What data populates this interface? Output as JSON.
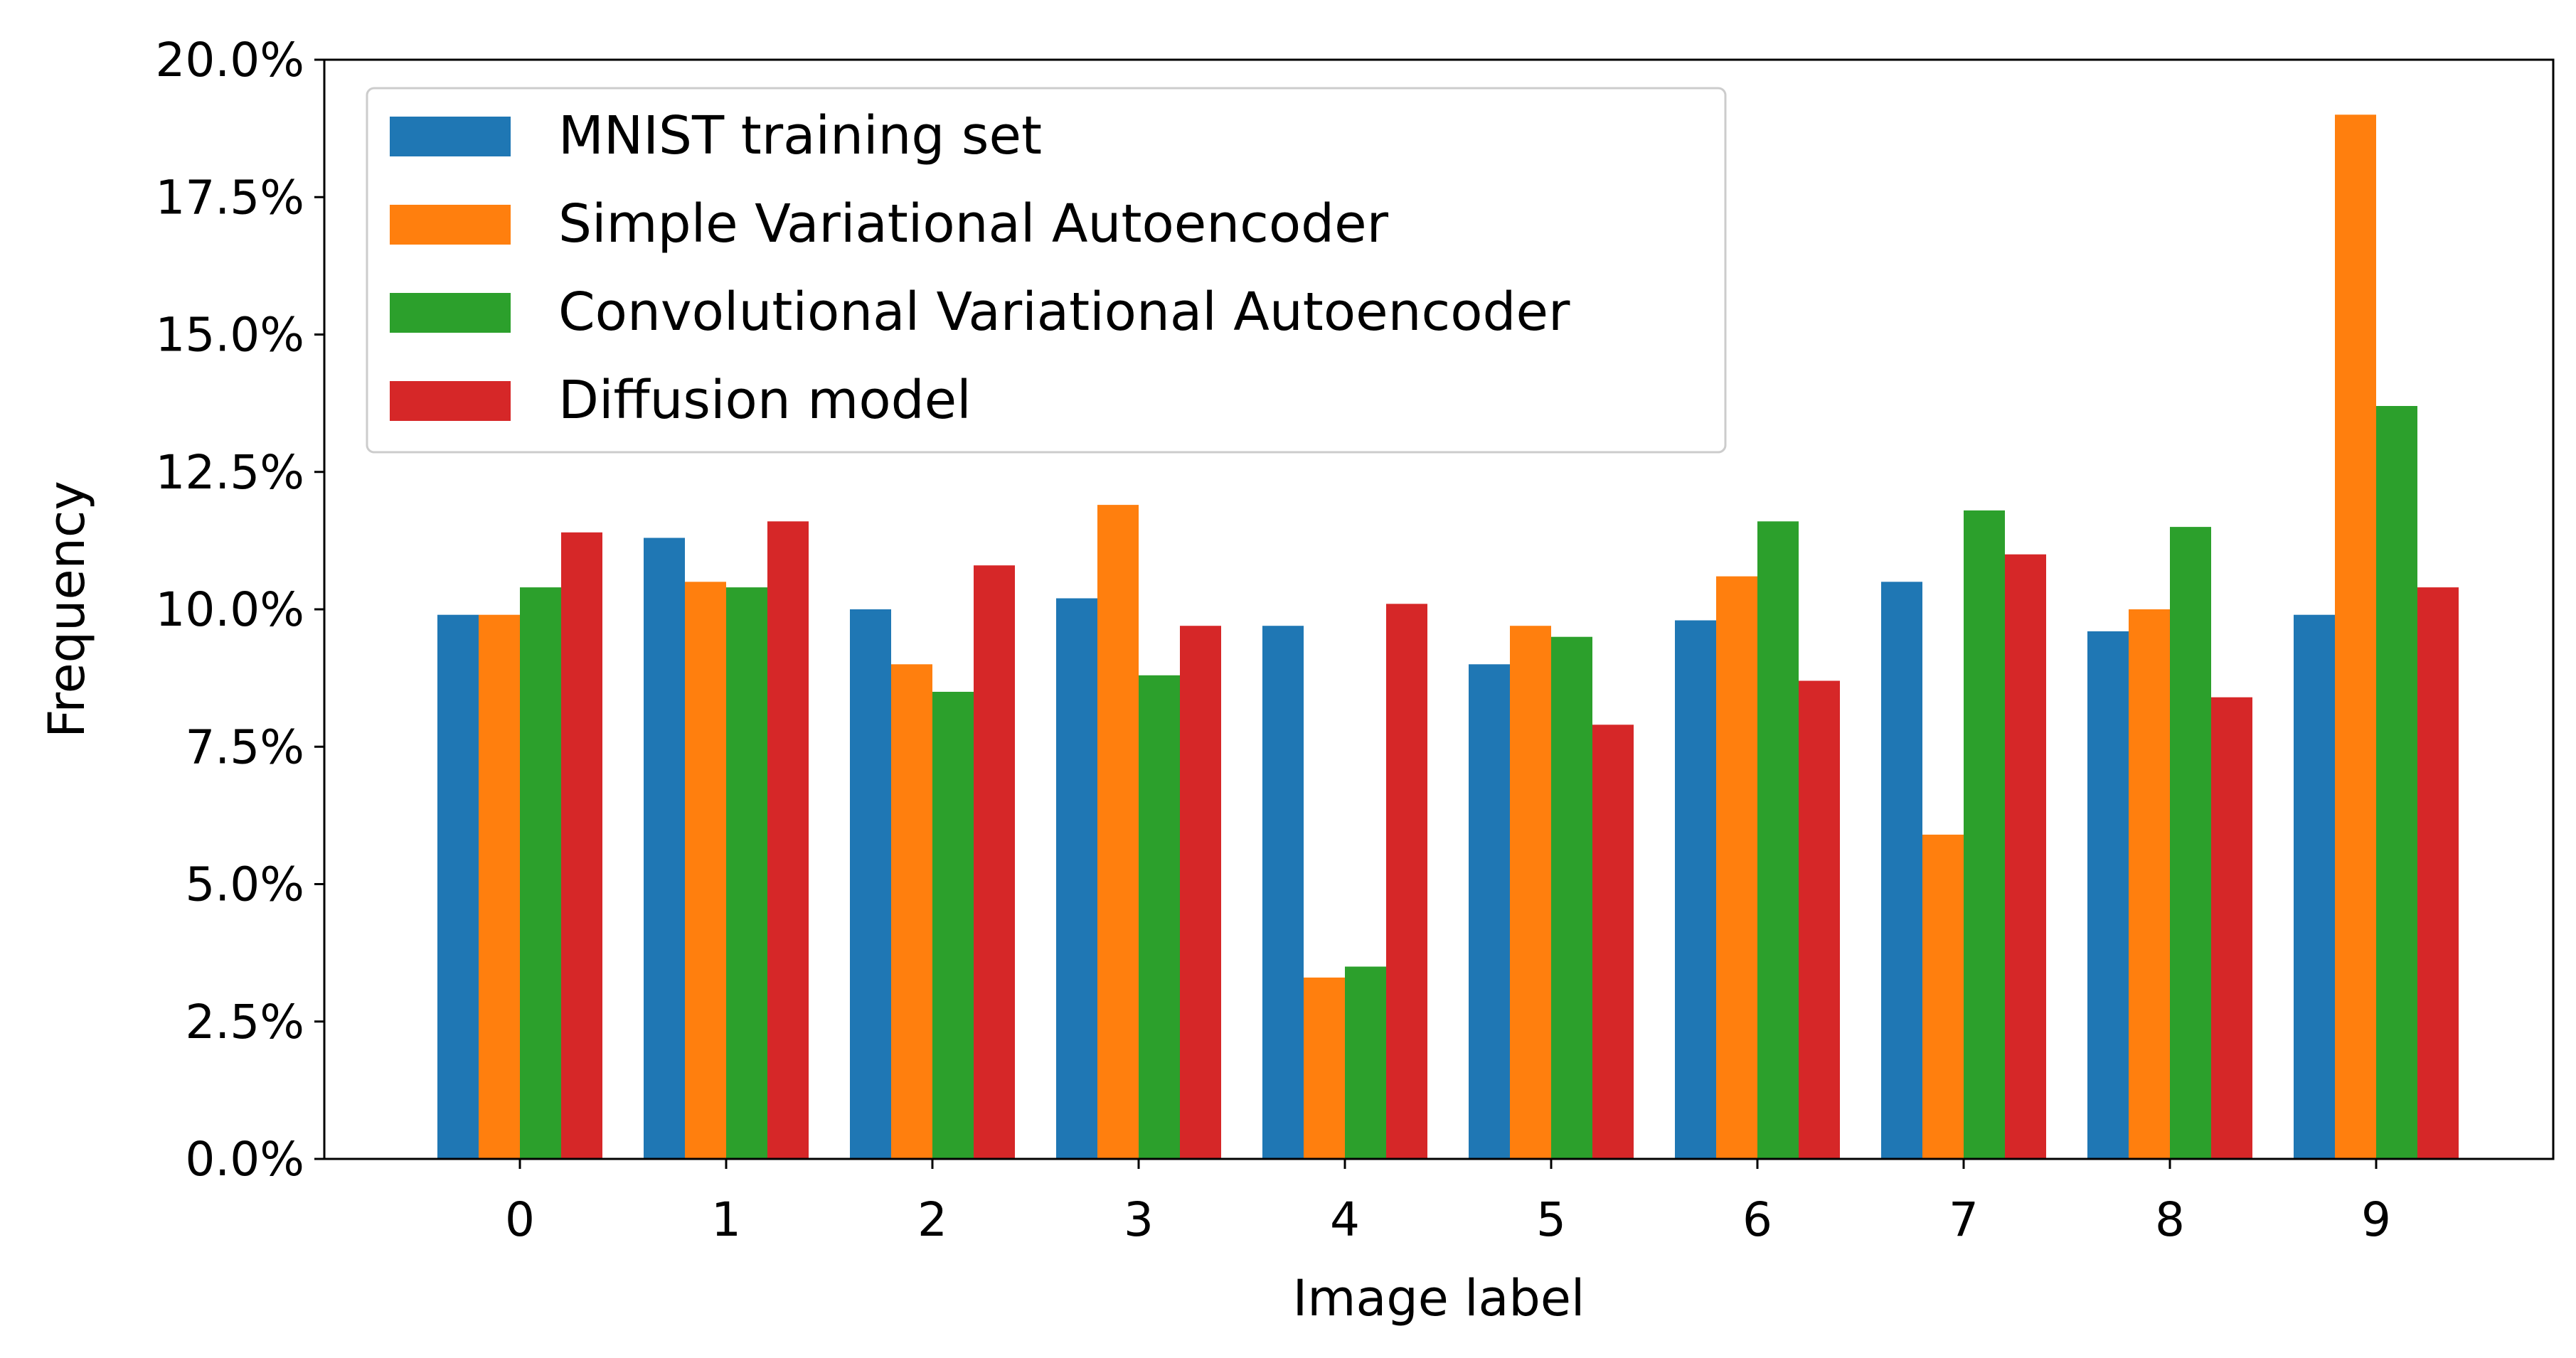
{
  "chart_data": {
    "type": "bar",
    "categories": [
      "0",
      "1",
      "2",
      "3",
      "4",
      "5",
      "6",
      "7",
      "8",
      "9"
    ],
    "series": [
      {
        "name": "MNIST training set",
        "color": "#1f77b4",
        "values": [
          9.9,
          11.3,
          10.0,
          10.2,
          9.7,
          9.0,
          9.8,
          10.5,
          9.6,
          9.9
        ]
      },
      {
        "name": "Simple Variational Autoencoder",
        "color": "#ff7f0e",
        "values": [
          9.9,
          10.5,
          9.0,
          11.9,
          3.3,
          9.7,
          10.6,
          5.9,
          10.0,
          19.0
        ]
      },
      {
        "name": "Convolutional Variational Autoencoder",
        "color": "#2ca02c",
        "values": [
          10.4,
          10.4,
          8.5,
          8.8,
          3.5,
          9.5,
          11.6,
          11.8,
          11.5,
          13.7
        ]
      },
      {
        "name": "Diffusion model",
        "color": "#d62728",
        "values": [
          11.4,
          11.6,
          10.8,
          9.7,
          10.1,
          7.9,
          8.7,
          11.0,
          8.4,
          10.4
        ]
      }
    ],
    "xlabel": "Image label",
    "ylabel": "Frequency",
    "ylim": [
      0,
      20
    ],
    "yticks": [
      0,
      2.5,
      5,
      7.5,
      10,
      12.5,
      15,
      17.5,
      20
    ],
    "ytick_labels": [
      "0.0%",
      "2.5%",
      "5.0%",
      "7.5%",
      "10.0%",
      "12.5%",
      "15.0%",
      "17.5%",
      "20.0%"
    ],
    "grid": false,
    "legend_position": "top-left"
  }
}
